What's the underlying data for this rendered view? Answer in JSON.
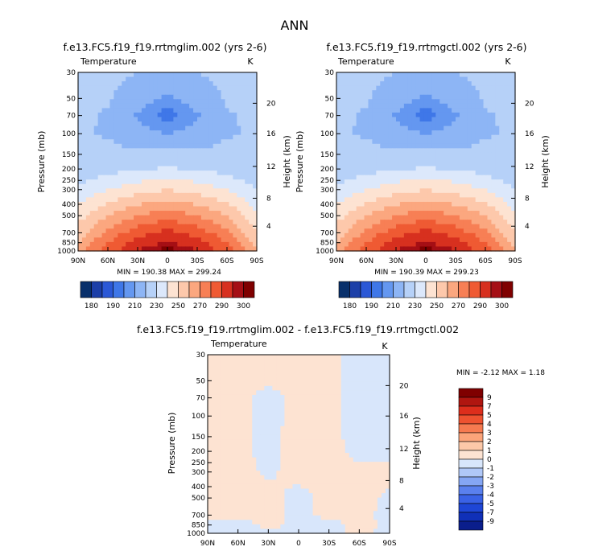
{
  "figure": {
    "title": "ANN"
  },
  "colors": {
    "control_levels": [
      "#08306b",
      "#1c3fa8",
      "#2b58d6",
      "#3f77e8",
      "#6497f0",
      "#8db5f5",
      "#b6d1f8",
      "#dce8fb",
      "#fde3d2",
      "#fdc8ab",
      "#fba77f",
      "#f77f55",
      "#ef5a33",
      "#d7301f",
      "#a50f15",
      "#7f0000"
    ],
    "diff_levels": [
      "#0a1e8c",
      "#1030b8",
      "#1e46d6",
      "#3a62e6",
      "#5a80ee",
      "#85a6f4",
      "#b0c8f8",
      "#d8e6fb",
      "#fde3d2",
      "#fcc8a8",
      "#fba47a",
      "#f67a50",
      "#ee5230",
      "#dd2e1c",
      "#b01610",
      "#7f0000"
    ]
  },
  "chart_data": [
    {
      "type": "heatmap",
      "subtitle": "f.e13.FC5.f19_f19.rrtmglim.002 (yrs 2-6)",
      "variable_label": "Temperature",
      "units": "K",
      "ylabel": "Pressure (mb)",
      "ylabel_right": "Height (km)",
      "x_ticks": [
        "90N",
        "60N",
        "30N",
        "0",
        "30S",
        "60S",
        "90S"
      ],
      "y_ticks": [
        "30",
        "50",
        "70",
        "100",
        "150",
        "200",
        "250",
        "300",
        "400",
        "500",
        "700",
        "850",
        "1000"
      ],
      "y_ticks_right": [
        "20",
        "16",
        "12",
        "8",
        "4"
      ],
      "min_max": "MIN = 190.38   MAX = 299.24",
      "colorbar_labels": [
        "180",
        "190",
        "210",
        "230",
        "250",
        "270",
        "290",
        "300"
      ],
      "x": [
        -90,
        -60,
        -30,
        0,
        30,
        60,
        90
      ],
      "pressure": [
        1000,
        850,
        700,
        500,
        300,
        200,
        100,
        70,
        50,
        30
      ],
      "values": [
        [
          255,
          275,
          290,
          299,
          290,
          275,
          252
        ],
        [
          250,
          270,
          284,
          291,
          284,
          270,
          246
        ],
        [
          245,
          263,
          276,
          283,
          276,
          263,
          240
        ],
        [
          236,
          250,
          260,
          266,
          260,
          250,
          232
        ],
        [
          222,
          230,
          236,
          240,
          236,
          230,
          220
        ],
        [
          213,
          216,
          219,
          221,
          219,
          216,
          212
        ],
        [
          211,
          209,
          203,
          200,
          203,
          209,
          211
        ],
        [
          212,
          209,
          199,
          192,
          199,
          209,
          212
        ],
        [
          213,
          211,
          204,
          198,
          204,
          211,
          214
        ],
        [
          214,
          213,
          210,
          208,
          210,
          213,
          216
        ]
      ]
    },
    {
      "type": "heatmap",
      "subtitle": "f.e13.FC5.f19_f19.rrtmgctl.002 (yrs 2-6)",
      "variable_label": "Temperature",
      "units": "K",
      "ylabel": "Pressure (mb)",
      "ylabel_right": "Height (km)",
      "x_ticks": [
        "90N",
        "60N",
        "30N",
        "0",
        "30S",
        "60S",
        "90S"
      ],
      "y_ticks": [
        "30",
        "50",
        "70",
        "100",
        "150",
        "200",
        "250",
        "300",
        "400",
        "500",
        "700",
        "850",
        "1000"
      ],
      "y_ticks_right": [
        "20",
        "16",
        "12",
        "8",
        "4"
      ],
      "min_max": "MIN = 190.39   MAX = 299.23",
      "colorbar_labels": [
        "180",
        "190",
        "210",
        "230",
        "250",
        "270",
        "290",
        "300"
      ],
      "x": [
        -90,
        -60,
        -30,
        0,
        30,
        60,
        90
      ],
      "pressure": [
        1000,
        850,
        700,
        500,
        300,
        200,
        100,
        70,
        50,
        30
      ],
      "values": [
        [
          255,
          275,
          290,
          299,
          290,
          275,
          252
        ],
        [
          250,
          270,
          284,
          291,
          284,
          270,
          246
        ],
        [
          245,
          263,
          276,
          283,
          276,
          263,
          240
        ],
        [
          236,
          250,
          260,
          266,
          260,
          250,
          232
        ],
        [
          222,
          230,
          236,
          240,
          236,
          230,
          220
        ],
        [
          213,
          216,
          219,
          221,
          219,
          216,
          212
        ],
        [
          211,
          209,
          203,
          200,
          203,
          209,
          211
        ],
        [
          212,
          209,
          199,
          192,
          199,
          209,
          212
        ],
        [
          213,
          211,
          204,
          198,
          204,
          211,
          214
        ],
        [
          214,
          213,
          210,
          208,
          210,
          213,
          216
        ]
      ]
    },
    {
      "type": "heatmap",
      "title": "f.e13.FC5.f19_f19.rrtmglim.002 - f.e13.FC5.f19_f19.rrtmgctl.002",
      "variable_label": "Temperature",
      "units": "K",
      "ylabel": "Pressure (mb)",
      "ylabel_right": "Height (km)",
      "x_ticks": [
        "90N",
        "60N",
        "30N",
        "0",
        "30S",
        "60S",
        "90S"
      ],
      "y_ticks": [
        "30",
        "50",
        "70",
        "100",
        "150",
        "200",
        "250",
        "300",
        "400",
        "500",
        "700",
        "850",
        "1000"
      ],
      "y_ticks_right": [
        "20",
        "16",
        "12",
        "8",
        "4"
      ],
      "min_max": "MIN =   -2.12   MAX =    1.18",
      "colorbar_labels": [
        "9",
        "7",
        "5",
        "4",
        "3",
        "2",
        "1",
        "0",
        "-1",
        "-2",
        "-3",
        "-4",
        "-5",
        "-7",
        "-9"
      ],
      "x": [
        -90,
        -60,
        -30,
        0,
        30,
        60,
        90
      ],
      "pressure": [
        1000,
        850,
        700,
        500,
        300,
        200,
        100,
        70,
        50,
        30
      ],
      "values": [
        [
          -0.2,
          -0.3,
          -0.1,
          -0.2,
          -0.3,
          0.2,
          -0.2
        ],
        [
          -0.2,
          -0.3,
          0.2,
          -0.2,
          -0.3,
          0.3,
          -0.2
        ],
        [
          0.2,
          0.2,
          0.3,
          -0.2,
          0.2,
          0.2,
          -0.2
        ],
        [
          0.2,
          0.3,
          0.2,
          -0.2,
          0.2,
          0.2,
          -0.1
        ],
        [
          0.2,
          0.2,
          -0.1,
          0.2,
          0.2,
          0.2,
          0.2
        ],
        [
          0.4,
          0.2,
          -0.2,
          0.3,
          0.2,
          -0.2,
          -0.2
        ],
        [
          0.5,
          0.2,
          -0.2,
          0.2,
          0.2,
          -0.3,
          -0.3
        ],
        [
          0.2,
          0.2,
          -0.2,
          0.2,
          0.2,
          -0.3,
          -0.3
        ],
        [
          0.2,
          0.2,
          0.1,
          0.2,
          0.2,
          -0.3,
          -0.3
        ],
        [
          0.2,
          0.2,
          0.2,
          0.2,
          0.2,
          -0.3,
          -0.3
        ]
      ]
    }
  ]
}
